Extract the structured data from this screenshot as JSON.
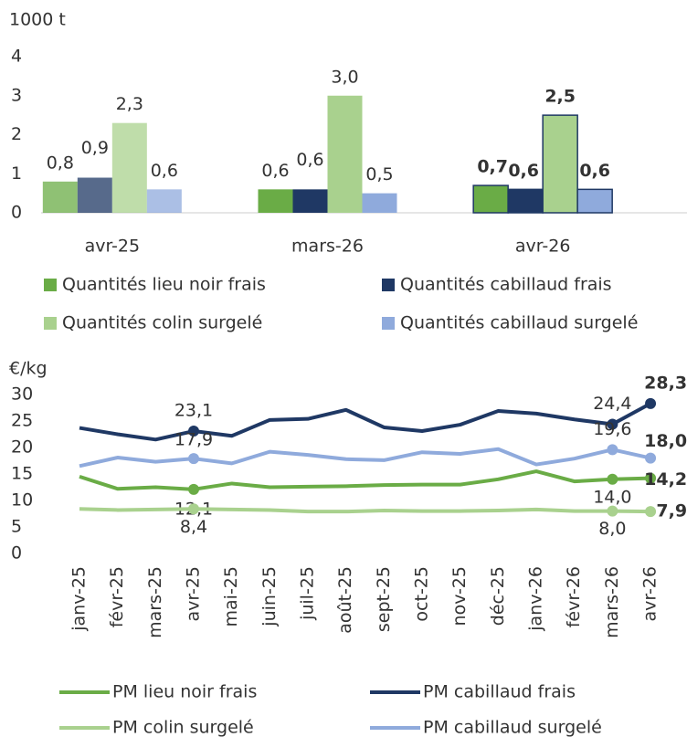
{
  "chart_data": [
    {
      "type": "bar",
      "y_label": "1000 t",
      "categories": [
        "avr-25",
        "mars-26",
        "avr-26"
      ],
      "series": [
        {
          "name": "Quantités lieu noir frais",
          "color": "#6aac46",
          "values": [
            0.8,
            0.6,
            0.7
          ],
          "value_labels": [
            "0,8",
            "0,6",
            "0,7"
          ]
        },
        {
          "name": "Quantités cabillaud frais",
          "color": "#1f3864",
          "values": [
            0.9,
            0.6,
            0.6
          ],
          "value_labels": [
            "0,9",
            "0,6",
            "0,6"
          ]
        },
        {
          "name": "Quantités colin surgelé",
          "color": "#a9d18e",
          "values": [
            2.3,
            3.0,
            2.5
          ],
          "value_labels": [
            "2,3",
            "3,0",
            "2,5"
          ]
        },
        {
          "name": "Quantités cabillaud surgelé",
          "color": "#8faadc",
          "values": [
            0.6,
            0.5,
            0.6
          ],
          "value_labels": [
            "0,6",
            "0,5",
            "0,6"
          ]
        }
      ],
      "ylim": [
        0,
        4
      ],
      "yticks": [
        0,
        1,
        2,
        3,
        4
      ]
    },
    {
      "type": "line",
      "y_label": "€/kg",
      "categories": [
        "janv-25",
        "févr-25",
        "mars-25",
        "avr-25",
        "mai-25",
        "juin-25",
        "juil-25",
        "août-25",
        "sept-25",
        "oct-25",
        "nov-25",
        "déc-25",
        "janv-26",
        "févr-26",
        "mars-26",
        "avr-26"
      ],
      "series": [
        {
          "name": "PM lieu noir frais",
          "color": "#6aac46",
          "values": [
            14.5,
            12.2,
            12.5,
            12.1,
            13.2,
            12.5,
            12.6,
            12.7,
            12.9,
            13.0,
            13.0,
            14.0,
            15.5,
            13.6,
            14.0,
            14.2
          ],
          "value_labels": [
            null,
            null,
            null,
            "12,1",
            null,
            null,
            null,
            null,
            null,
            null,
            null,
            null,
            null,
            null,
            "14,0",
            "14,2"
          ]
        },
        {
          "name": "PM cabillaud frais",
          "color": "#1f3864",
          "values": [
            23.7,
            22.5,
            21.5,
            23.1,
            22.2,
            25.2,
            25.4,
            27.1,
            23.8,
            23.1,
            24.3,
            26.9,
            26.4,
            25.3,
            24.4,
            28.3
          ],
          "value_labels": [
            null,
            null,
            null,
            "23,1",
            null,
            null,
            null,
            null,
            null,
            null,
            null,
            null,
            null,
            null,
            "24,4",
            "28,3"
          ]
        },
        {
          "name": "PM colin surgelé",
          "color": "#a9d18e",
          "values": [
            8.4,
            8.2,
            8.3,
            8.4,
            8.3,
            8.2,
            7.9,
            7.9,
            8.1,
            8.0,
            8.0,
            8.1,
            8.3,
            8.0,
            8.0,
            7.9
          ],
          "value_labels": [
            null,
            null,
            null,
            "8,4",
            null,
            null,
            null,
            null,
            null,
            null,
            null,
            null,
            null,
            null,
            "8,0",
            "7,9"
          ]
        },
        {
          "name": "PM cabillaud surgelé",
          "color": "#8faadc",
          "values": [
            16.5,
            18.1,
            17.3,
            17.9,
            17.0,
            19.2,
            18.6,
            17.8,
            17.6,
            19.1,
            18.8,
            19.7,
            16.8,
            17.9,
            19.6,
            18.0
          ],
          "value_labels": [
            null,
            null,
            null,
            "17,9",
            null,
            null,
            null,
            null,
            null,
            null,
            null,
            null,
            null,
            null,
            "19,6",
            "18,0"
          ]
        }
      ],
      "ylim": [
        0,
        30
      ],
      "yticks": [
        0,
        5,
        10,
        15,
        20,
        25,
        30
      ]
    }
  ]
}
